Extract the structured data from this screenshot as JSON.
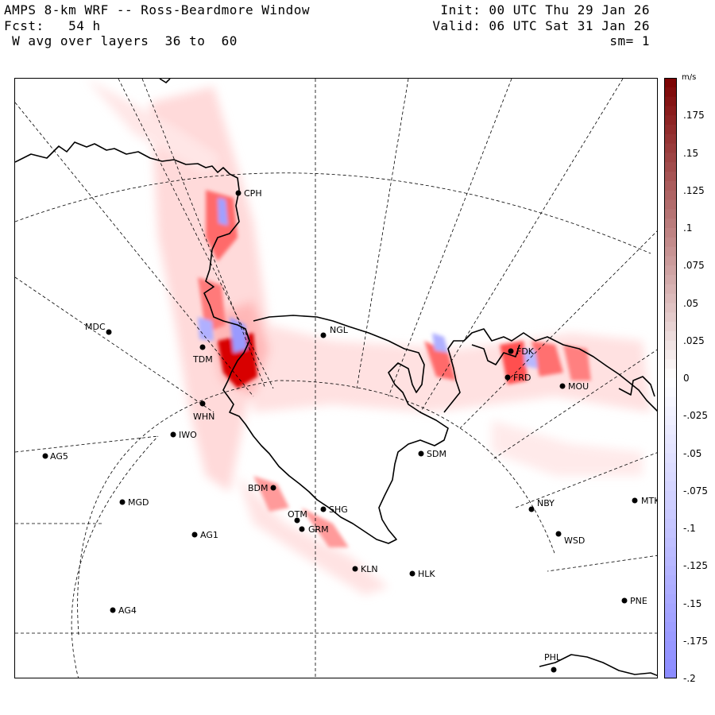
{
  "header": {
    "title": "AMPS 8-km WRF -- Ross-Beardmore Window",
    "forecast": "Fcst:   54 h",
    "field": " W avg over layers  36 to  60",
    "init": "Init: 00 UTC Thu 29 Jan 26",
    "valid": "Valid: 06 UTC Sat 31 Jan 26",
    "smoothing": "sm= 1"
  },
  "colorbar": {
    "unit": "m/s",
    "labels": [
      ".175",
      ".15",
      ".125",
      ".1",
      ".075",
      ".05",
      ".025",
      "0",
      "-.025",
      "-.05",
      "-.075",
      "-.1",
      "-.125",
      "-.15",
      "-.175",
      "-.2"
    ],
    "label_values": [
      0.175,
      0.15,
      0.125,
      0.1,
      0.075,
      0.05,
      0.025,
      0,
      -0.025,
      -0.05,
      -0.075,
      -0.1,
      -0.125,
      -0.15,
      -0.175,
      -0.2
    ],
    "min": -0.2,
    "max": 0.2,
    "positive_color": "#7a0000",
    "negative_color": "#8a8aff"
  },
  "stations": [
    "CPH",
    "NGL",
    "MDC",
    "TDM",
    "FDK",
    "FRD",
    "MOU",
    "WHN",
    "IWO",
    "AG5",
    "SDM",
    "BDM",
    "MGD",
    "SHG",
    "OTM",
    "GRM",
    "NBY",
    "MTK",
    "AG1",
    "WSD",
    "KLN",
    "HLK",
    "AG4",
    "PNE",
    "PHL"
  ]
}
